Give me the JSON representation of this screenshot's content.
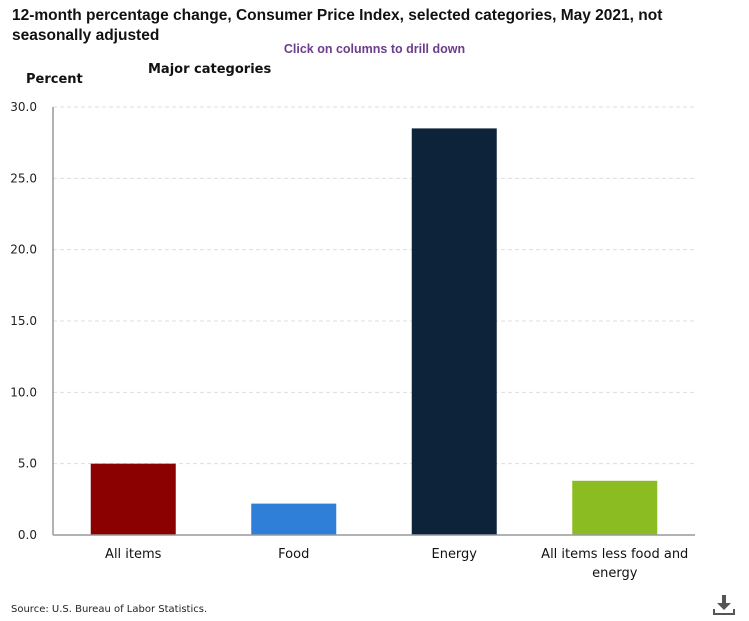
{
  "header": {
    "title": "12-month percentage change, Consumer Price Index, selected categories, May 2021, not seasonally adjusted",
    "drill_hint": "Click on columns to drill down",
    "subtitle": "Major categories",
    "y_axis_label": "Percent"
  },
  "footer": {
    "source": "Source: U.S. Bureau of Labor Statistics.",
    "download_icon": "download-icon"
  },
  "chart_data": {
    "type": "bar",
    "title": "12-month percentage change, Consumer Price Index, selected categories, May 2021, not seasonally adjusted",
    "subtitle": "Major categories",
    "xlabel": "",
    "ylabel": "Percent",
    "ylim": [
      0,
      30
    ],
    "yticks": [
      "0.0",
      "5.0",
      "10.0",
      "15.0",
      "20.0",
      "25.0",
      "30.0"
    ],
    "ytick_values": [
      0,
      5,
      10,
      15,
      20,
      25,
      30
    ],
    "grid": true,
    "categories": [
      {
        "label_lines": [
          "All items"
        ],
        "color": "#8b0000"
      },
      {
        "label_lines": [
          "Food"
        ],
        "color": "#2f7ed8"
      },
      {
        "label_lines": [
          "Energy"
        ],
        "color": "#0d233a"
      },
      {
        "label_lines": [
          "All items less food and",
          "energy"
        ],
        "color": "#8bbc21"
      }
    ],
    "values": [
      5.0,
      2.2,
      28.5,
      3.8
    ]
  }
}
